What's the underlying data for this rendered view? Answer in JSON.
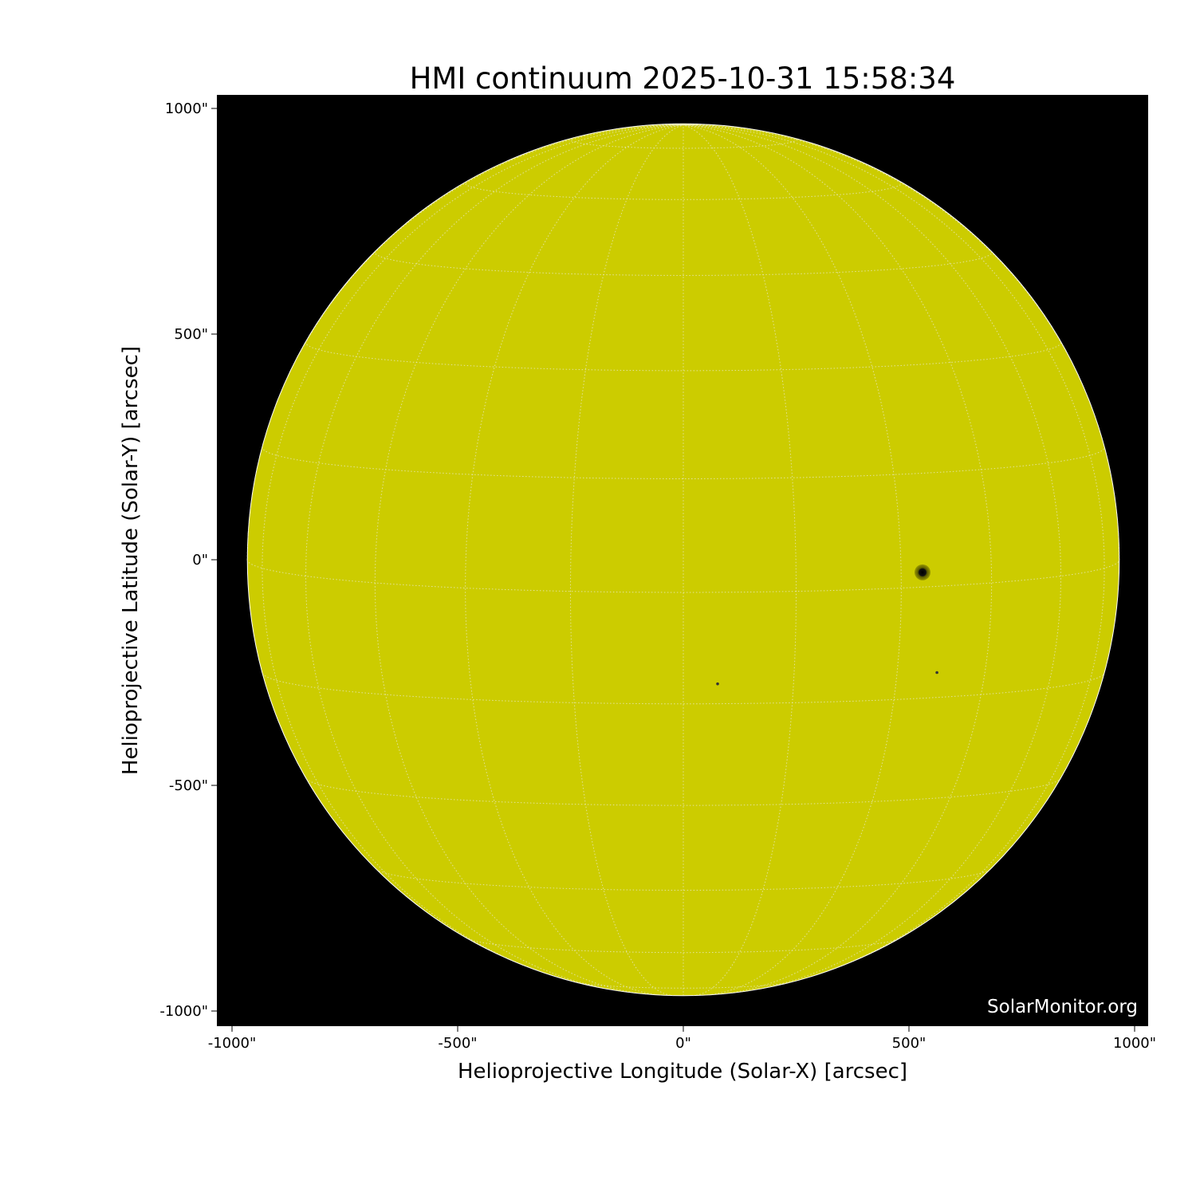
{
  "chart_data": {
    "type": "image",
    "title": "HMI continuum 2025-10-31 15:58:34",
    "xlabel": "Helioprojective Longitude (Solar-X) [arcsec]",
    "ylabel": "Helioprojective Latitude (Solar-Y) [arcsec]",
    "xlim": [
      -1032,
      1032
    ],
    "ylim": [
      -1032,
      1032
    ],
    "xticks": [
      "-1000\"",
      "-500\"",
      "0\"",
      "500\"",
      "1000\""
    ],
    "yticks": [
      "1000\"",
      "500\"",
      "0\"",
      "-500\"",
      "-1000\""
    ],
    "xtick_values": [
      -1000,
      -500,
      0,
      500,
      1000
    ],
    "ytick_values": [
      1000,
      500,
      0,
      -500,
      -1000
    ],
    "solar_radius_arcsec": 966,
    "disk_color": "#cccc00",
    "background_color": "#000000",
    "grid": true,
    "grid_spacing_deg": 15,
    "sunspots": [
      {
        "x": 530,
        "y": -28,
        "size": "large"
      },
      {
        "x": 562,
        "y": -250,
        "size": "small"
      },
      {
        "x": 76,
        "y": -275,
        "size": "small"
      }
    ],
    "watermark": "SolarMonitor.org"
  }
}
